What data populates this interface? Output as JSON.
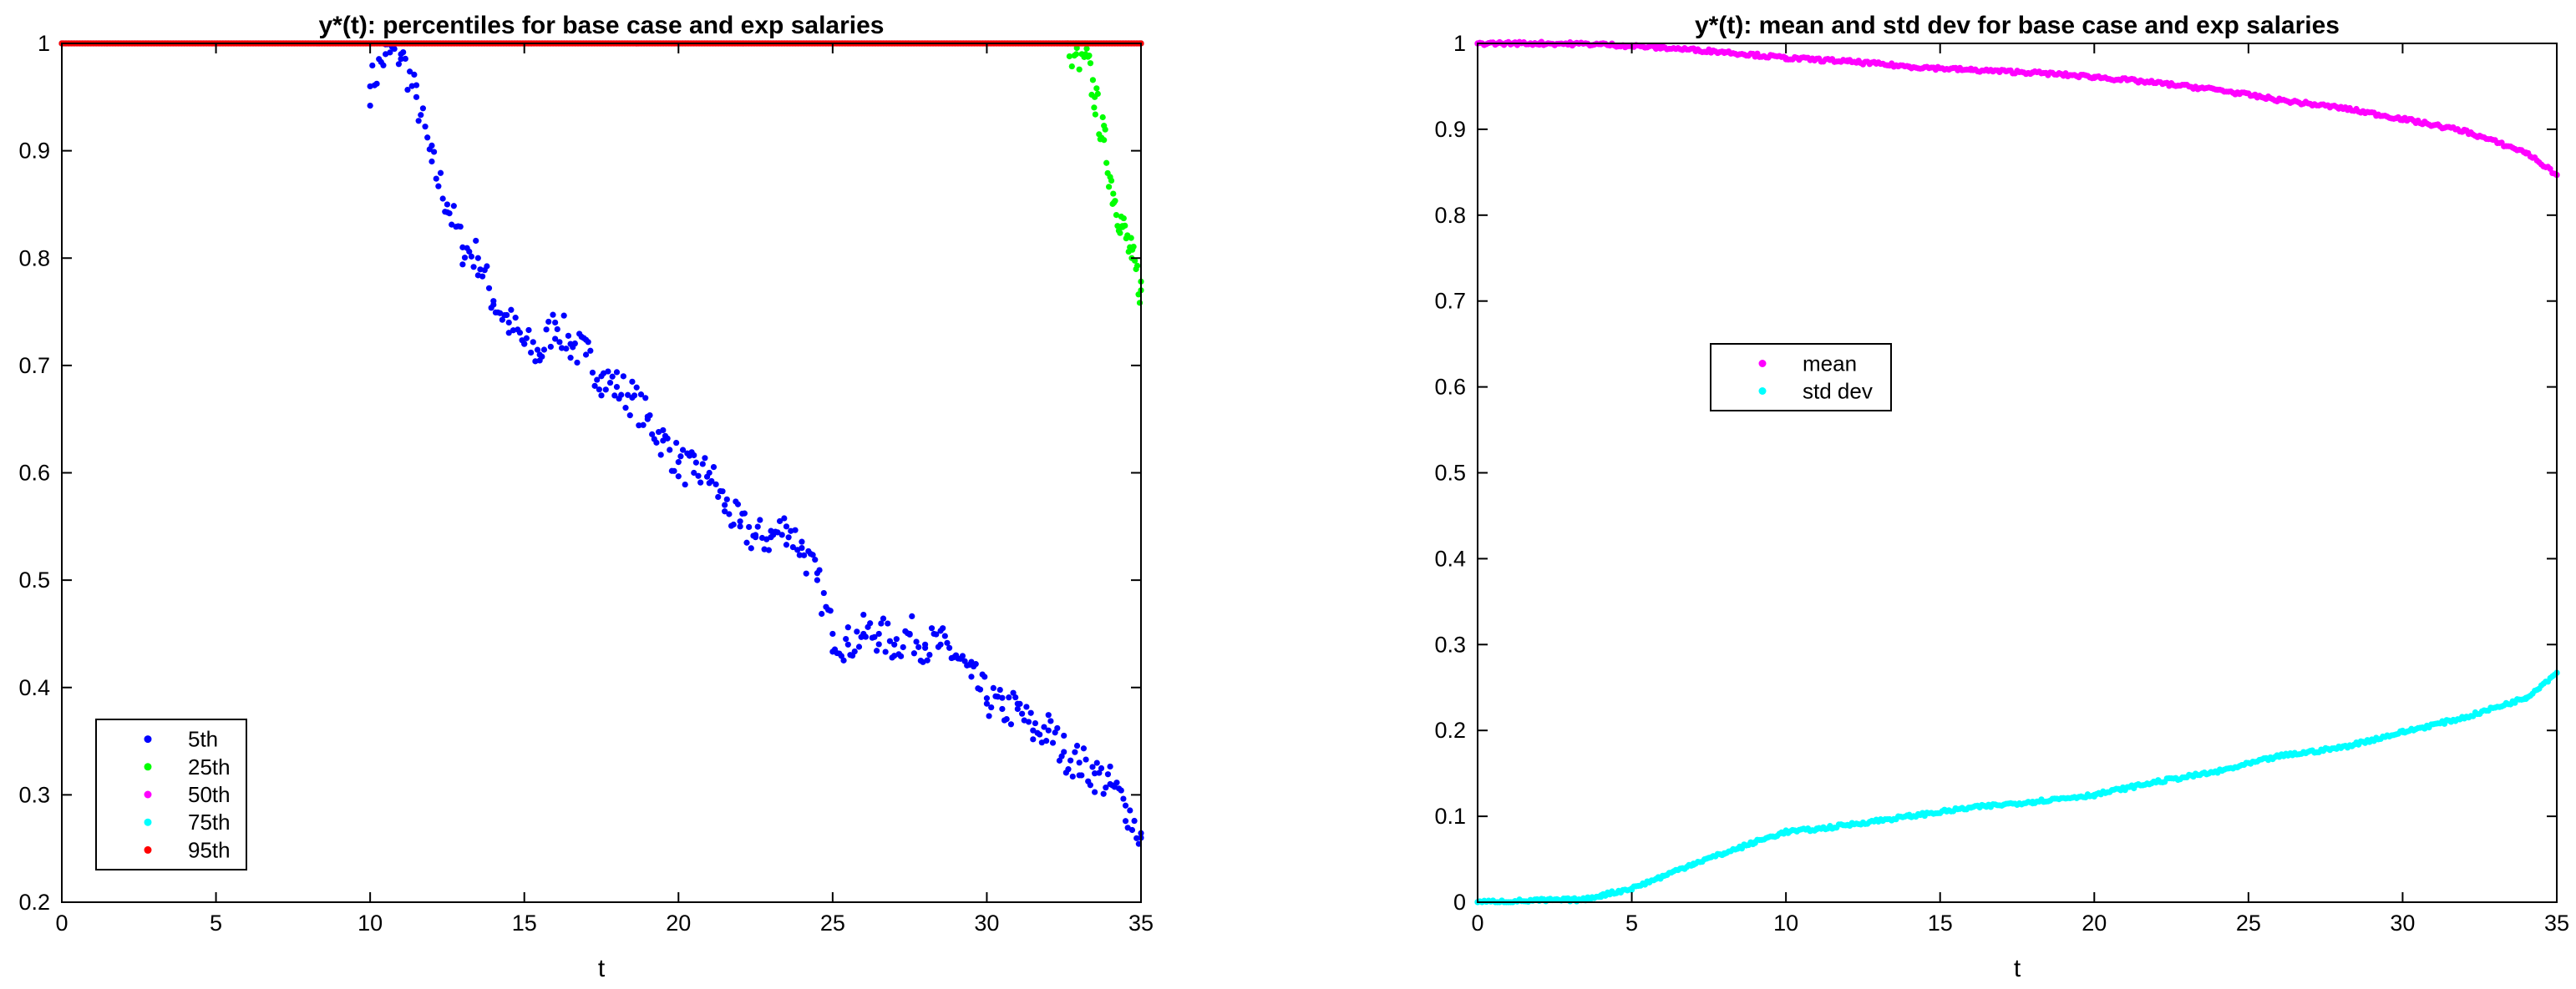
{
  "chart_data": [
    {
      "type": "scatter",
      "title": "y*(t): percentiles for base case and exp salaries",
      "xlabel": "t",
      "ylabel": "",
      "xlim": [
        0,
        35
      ],
      "ylim": [
        0.2,
        1
      ],
      "xticks": [
        "0",
        "5",
        "10",
        "15",
        "20",
        "25",
        "30",
        "35"
      ],
      "yticks": [
        "0.2",
        "0.3",
        "0.4",
        "0.5",
        "0.6",
        "0.7",
        "0.8",
        "0.9",
        "1"
      ],
      "grid": false,
      "legend_position": "bottom-left",
      "series": [
        {
          "name": "5th",
          "color": "#0000ff",
          "x": [
            10,
            10.5,
            11,
            11.5,
            12,
            12.5,
            13,
            13.5,
            14,
            14.5,
            15,
            15.5,
            16,
            16.5,
            17,
            17.5,
            18,
            18.5,
            19,
            19.5,
            20,
            20.5,
            21,
            21.5,
            22,
            22.5,
            23,
            23.5,
            24,
            24.5,
            25,
            25.5,
            26,
            26.5,
            27,
            27.5,
            28,
            28.5,
            29,
            29.5,
            30,
            30.5,
            31,
            31.5,
            32,
            32.5,
            33,
            33.5,
            34,
            34.5,
            35
          ],
          "y": [
            0.96,
            0.99,
            0.99,
            0.95,
            0.89,
            0.85,
            0.81,
            0.8,
            0.76,
            0.74,
            0.72,
            0.71,
            0.74,
            0.72,
            0.71,
            0.69,
            0.68,
            0.67,
            0.65,
            0.63,
            0.61,
            0.6,
            0.6,
            0.57,
            0.55,
            0.54,
            0.54,
            0.55,
            0.53,
            0.5,
            0.45,
            0.44,
            0.45,
            0.45,
            0.44,
            0.45,
            0.44,
            0.44,
            0.43,
            0.41,
            0.39,
            0.38,
            0.38,
            0.36,
            0.36,
            0.34,
            0.33,
            0.32,
            0.31,
            0.29,
            0.26
          ]
        },
        {
          "name": "25th",
          "color": "#00ff00",
          "x": [
            32.6,
            32.9,
            33.2,
            33.5,
            33.8,
            34.1,
            34.4,
            34.7,
            35
          ],
          "y": [
            1.0,
            0.99,
            0.99,
            0.95,
            0.91,
            0.86,
            0.83,
            0.8,
            0.77
          ]
        },
        {
          "name": "50th",
          "color": "#ff00ff",
          "x": [
            0,
            35
          ],
          "y": [
            1,
            1
          ]
        },
        {
          "name": "75th",
          "color": "#00ffff",
          "x": [
            0,
            35
          ],
          "y": [
            1,
            1
          ]
        },
        {
          "name": "95th",
          "color": "#ff0000",
          "x": [
            0,
            35
          ],
          "y": [
            1,
            1
          ]
        }
      ]
    },
    {
      "type": "scatter",
      "title": "y*(t): mean and std dev for base case and exp salaries",
      "xlabel": "t",
      "ylabel": "",
      "xlim": [
        0,
        35
      ],
      "ylim": [
        0,
        1
      ],
      "xticks": [
        "0",
        "5",
        "10",
        "15",
        "20",
        "25",
        "30",
        "35"
      ],
      "yticks": [
        "0",
        "0.1",
        "0.2",
        "0.3",
        "0.4",
        "0.5",
        "0.6",
        "0.7",
        "0.8",
        "0.9",
        "1"
      ],
      "grid": false,
      "legend_position": "center-left",
      "series": [
        {
          "name": "mean",
          "color": "#ff00ff",
          "x": [
            0,
            2,
            4,
            6,
            8,
            10,
            12,
            14,
            16,
            18,
            20,
            22,
            24,
            26,
            28,
            30,
            32,
            34,
            35
          ],
          "y": [
            1.0,
            1.0,
            0.999,
            0.995,
            0.99,
            0.983,
            0.979,
            0.973,
            0.969,
            0.966,
            0.961,
            0.954,
            0.946,
            0.934,
            0.925,
            0.912,
            0.898,
            0.873,
            0.847
          ]
        },
        {
          "name": "std dev",
          "color": "#00ffff",
          "x": [
            0,
            2,
            3.5,
            4,
            5,
            6,
            7,
            8,
            9,
            10,
            11,
            12,
            14,
            16,
            18,
            20,
            22,
            24,
            26,
            28,
            30,
            32,
            34,
            35
          ],
          "y": [
            0.0,
            0.002,
            0.003,
            0.008,
            0.016,
            0.03,
            0.045,
            0.057,
            0.07,
            0.082,
            0.085,
            0.09,
            0.1,
            0.11,
            0.117,
            0.125,
            0.14,
            0.152,
            0.17,
            0.18,
            0.198,
            0.215,
            0.238,
            0.267
          ]
        }
      ]
    }
  ]
}
